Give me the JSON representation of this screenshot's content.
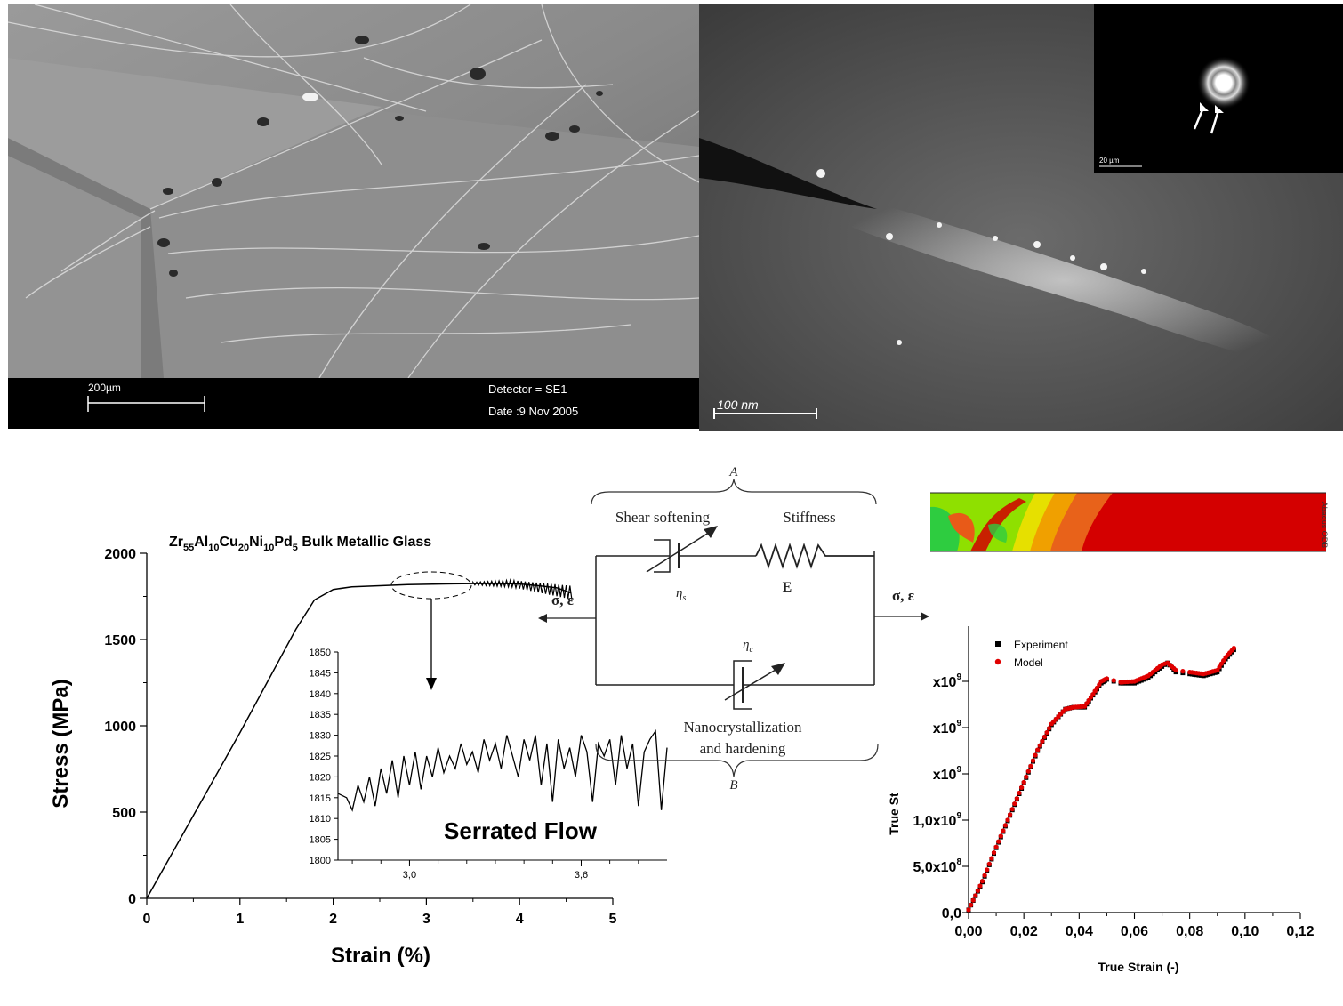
{
  "sem": {
    "scale_label": "200µm",
    "detector": "Detector = SE1",
    "date": "Date :9 Nov 2005"
  },
  "tem": {
    "scale_label": "100 nm",
    "inset_scale_label": "20 µm"
  },
  "stress_strain_chart": {
    "chart_data": {
      "type": "line",
      "title": "Zr55Al10Cu20Ni10Pd5 Bulk Metallic Glass",
      "title_parts": {
        "a": "Zr",
        "a_sub": "55",
        "b": "Al",
        "b_sub": "10",
        "c": "Cu",
        "c_sub": "20",
        "d": "Ni",
        "d_sub": "10",
        "e": "Pd",
        "e_sub": "5",
        "rest": " Bulk Metallic Glass"
      },
      "xlabel": "Strain (%)",
      "ylabel": "Stress (MPa)",
      "xlim": [
        0,
        5
      ],
      "ylim": [
        0,
        2000
      ],
      "x_ticks": [
        "0",
        "1",
        "2",
        "3",
        "4",
        "5"
      ],
      "y_ticks": [
        "0",
        "500",
        "1000",
        "1500",
        "2000"
      ],
      "series": [
        {
          "x": [
            0,
            0.5,
            1.0,
            1.4,
            1.6,
            1.8,
            2.0,
            2.2,
            2.5,
            2.8,
            3.0,
            3.2,
            3.5,
            3.8,
            4.0,
            4.2,
            4.4,
            4.55
          ],
          "y": [
            0,
            480,
            960,
            1360,
            1560,
            1730,
            1790,
            1805,
            1812,
            1818,
            1820,
            1822,
            1824,
            1824,
            1822,
            1812,
            1800,
            1770
          ]
        }
      ]
    }
  },
  "inset_chart": {
    "chart_data": {
      "type": "line",
      "annotation": "Serrated Flow",
      "xlim": [
        2.75,
        3.9
      ],
      "ylim": [
        1800,
        1850
      ],
      "x_ticks": [
        "3,0",
        "3,6"
      ],
      "x_tick_values": [
        3.0,
        3.6
      ],
      "y_ticks": [
        "1800",
        "1805",
        "1810",
        "1815",
        "1820",
        "1825",
        "1830",
        "1835",
        "1840",
        "1845",
        "1850"
      ],
      "series": [
        {
          "x": [
            2.75,
            2.78,
            2.8,
            2.82,
            2.84,
            2.86,
            2.88,
            2.9,
            2.92,
            2.94,
            2.96,
            2.98,
            3.0,
            3.02,
            3.04,
            3.06,
            3.08,
            3.1,
            3.12,
            3.14,
            3.16,
            3.18,
            3.2,
            3.22,
            3.24,
            3.26,
            3.28,
            3.3,
            3.32,
            3.34,
            3.36,
            3.38,
            3.4,
            3.42,
            3.44,
            3.46,
            3.48,
            3.5,
            3.52,
            3.54,
            3.56,
            3.58,
            3.6,
            3.62,
            3.64,
            3.66,
            3.68,
            3.7,
            3.72,
            3.74,
            3.76,
            3.78,
            3.8,
            3.82,
            3.84,
            3.86,
            3.88,
            3.9
          ],
          "y": [
            1816,
            1815,
            1812,
            1818,
            1814,
            1820,
            1813,
            1822,
            1816,
            1824,
            1815,
            1825,
            1818,
            1826,
            1817,
            1825,
            1820,
            1827,
            1821,
            1825,
            1822,
            1828,
            1823,
            1826,
            1821,
            1829,
            1824,
            1828,
            1822,
            1830,
            1825,
            1820,
            1829,
            1824,
            1830,
            1818,
            1828,
            1814,
            1829,
            1822,
            1827,
            1820,
            1830,
            1826,
            1814,
            1828,
            1825,
            1829,
            1818,
            1830,
            1822,
            1828,
            1813,
            1826,
            1829,
            1831,
            1812,
            1827
          ]
        }
      ]
    }
  },
  "rheology_diagram": {
    "label_a": "A",
    "label_b": "B",
    "shear_softening": "Shear softening",
    "stiffness": "Stiffness",
    "eta_s": "η",
    "eta_s_sub": "s",
    "eta_c": "η",
    "eta_c_sub": "c",
    "modulus": "E",
    "sigma_eps_left": "σ, ε",
    "sigma_eps_right": "σ, ε",
    "nano_line1": "Nanocrystallization",
    "nano_line2": "and hardening"
  },
  "fe_contour": {
    "vertical_label": "Abaqus ODB"
  },
  "model_chart": {
    "chart_data": {
      "type": "scatter",
      "xlabel": "True Strain (-)",
      "ylabel": "True St",
      "xlim": [
        0,
        0.12
      ],
      "ylim": [
        0,
        3000000000.0
      ],
      "x_ticks": [
        "0,00",
        "0,02",
        "0,04",
        "0,06",
        "0,08",
        "0,10",
        "0,12"
      ],
      "y_ticks": [
        "0,0",
        "5,0x10",
        "1,0x10",
        "x10",
        "x10",
        "x10"
      ],
      "y_tick_exps": [
        "",
        "8",
        "9",
        "9",
        "9",
        "9"
      ],
      "legend": [
        "Experiment",
        "Model"
      ],
      "legend_position": "top-left",
      "series": [
        {
          "name": "Experiment",
          "x": [
            0.0,
            0.005,
            0.01,
            0.015,
            0.02,
            0.025,
            0.03,
            0.035,
            0.038,
            0.042,
            0.045,
            0.048,
            0.05,
            0.055,
            0.06,
            0.065,
            0.07,
            0.072,
            0.075,
            0.08,
            0.085,
            0.09,
            0.093,
            0.096
          ],
          "y": [
            30000000.0,
            330000000.0,
            700000000.0,
            1050000000.0,
            1400000000.0,
            1750000000.0,
            2030000000.0,
            2200000000.0,
            2220000000.0,
            2220000000.0,
            2350000000.0,
            2480000000.0,
            2520000000.0,
            2480000000.0,
            2480000000.0,
            2540000000.0,
            2660000000.0,
            2700000000.0,
            2600000000.0,
            2580000000.0,
            2560000000.0,
            2600000000.0,
            2740000000.0,
            2840000000.0
          ]
        },
        {
          "name": "Model",
          "x": [
            0.0,
            0.005,
            0.01,
            0.015,
            0.02,
            0.025,
            0.03,
            0.035,
            0.038,
            0.042,
            0.045,
            0.048,
            0.05,
            0.055,
            0.06,
            0.065,
            0.07,
            0.072,
            0.075,
            0.08,
            0.085,
            0.09,
            0.093,
            0.096
          ],
          "y": [
            30000000.0,
            340000000.0,
            710000000.0,
            1060000000.0,
            1410000000.0,
            1760000000.0,
            2040000000.0,
            2200000000.0,
            2220000000.0,
            2230000000.0,
            2360000000.0,
            2500000000.0,
            2530000000.0,
            2490000000.0,
            2500000000.0,
            2560000000.0,
            2680000000.0,
            2700000000.0,
            2620000000.0,
            2600000000.0,
            2580000000.0,
            2620000000.0,
            2760000000.0,
            2860000000.0
          ]
        }
      ]
    }
  }
}
